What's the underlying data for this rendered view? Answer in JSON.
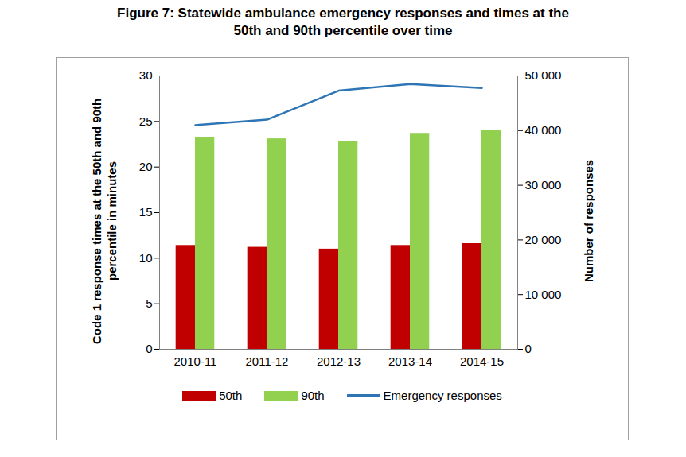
{
  "chart_data": {
    "type": "bar",
    "title": "Figure 7: Statewide ambulance emergency responses and times at the 50th and 90th percentile over time",
    "categories": [
      "2010-11",
      "2011-12",
      "2012-13",
      "2013-14",
      "2014-15"
    ],
    "series": [
      {
        "name": "50th",
        "type": "bar",
        "color": "#c00000",
        "values": [
          11.4,
          11.2,
          11.0,
          11.4,
          11.6
        ]
      },
      {
        "name": "90th",
        "type": "bar",
        "color": "#92d050",
        "values": [
          23.2,
          23.1,
          22.8,
          23.7,
          24.0
        ]
      },
      {
        "name": "Emergency responses",
        "type": "line",
        "axis": "y2",
        "color": "#2e75b6",
        "values": [
          41000,
          42000,
          47300,
          48500,
          47800
        ]
      }
    ],
    "ylabel": "Code 1 response times at the 50th and 90th percentile in minutes",
    "y2label": "Number of responses",
    "ylim": [
      0,
      30
    ],
    "yticks": [
      0,
      5,
      10,
      15,
      20,
      25,
      30
    ],
    "y2lim": [
      0,
      50000
    ],
    "y2ticks": [
      0,
      {
        "value": 10000,
        "label": "10 000"
      },
      {
        "value": 20000,
        "label": "20 000"
      },
      {
        "value": 30000,
        "label": "30 000"
      },
      {
        "value": 40000,
        "label": "40 000"
      },
      {
        "value": 50000,
        "label": "50 000"
      }
    ],
    "grid": false,
    "legend": "bottom"
  }
}
